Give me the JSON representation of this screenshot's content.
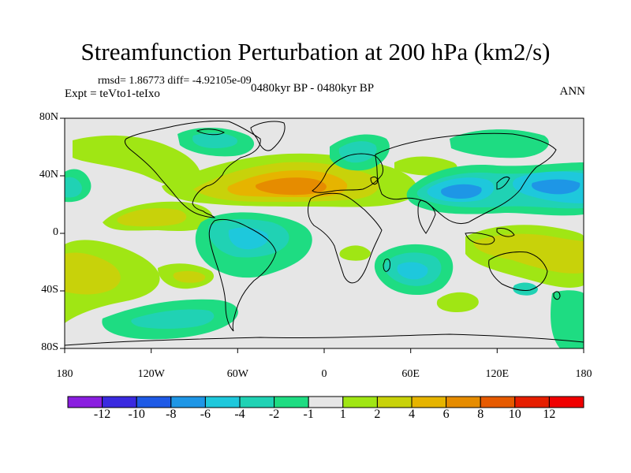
{
  "title": "Streamfunction Perturbation at 200 hPa (km2/s)",
  "stats": {
    "rmsd_line": "rmsd= 1.86773 diff= -4.92105e-09"
  },
  "experiment": "Expt = teVto1-teIxo",
  "period": "0480kyr BP - 0480kyr BP",
  "season": "ANN",
  "lat_labels": [
    "80N",
    "40N",
    "0",
    "40S",
    "80S"
  ],
  "lon_labels": [
    "180",
    "120W",
    "60W",
    "0",
    "60E",
    "120E",
    "180"
  ],
  "colorbar": {
    "labels": [
      "-12",
      "-10",
      "-8",
      "-6",
      "-4",
      "-2",
      "-1",
      "1",
      "2",
      "4",
      "6",
      "8",
      "10",
      "12"
    ],
    "colors": [
      "#8a1ee0",
      "#3a2ae0",
      "#1e5ae6",
      "#1e96e6",
      "#1ec8dc",
      "#20d2b4",
      "#1edc82",
      "#e6e6e6",
      "#a0e614",
      "#c8d20a",
      "#e6b400",
      "#e68c00",
      "#e65a00",
      "#e61e00",
      "#f00000"
    ]
  },
  "colors": {
    "background": "#e6e6e6",
    "neg_weak": "#1edc82",
    "neg_mid": "#20d2b4",
    "neg_strong": "#1ec8dc",
    "neg_stronger": "#1e96e6",
    "pos_weak": "#a0e614",
    "pos_mid": "#c8d20a",
    "pos_strong": "#e6b400",
    "pos_stronger": "#e68c00"
  }
}
